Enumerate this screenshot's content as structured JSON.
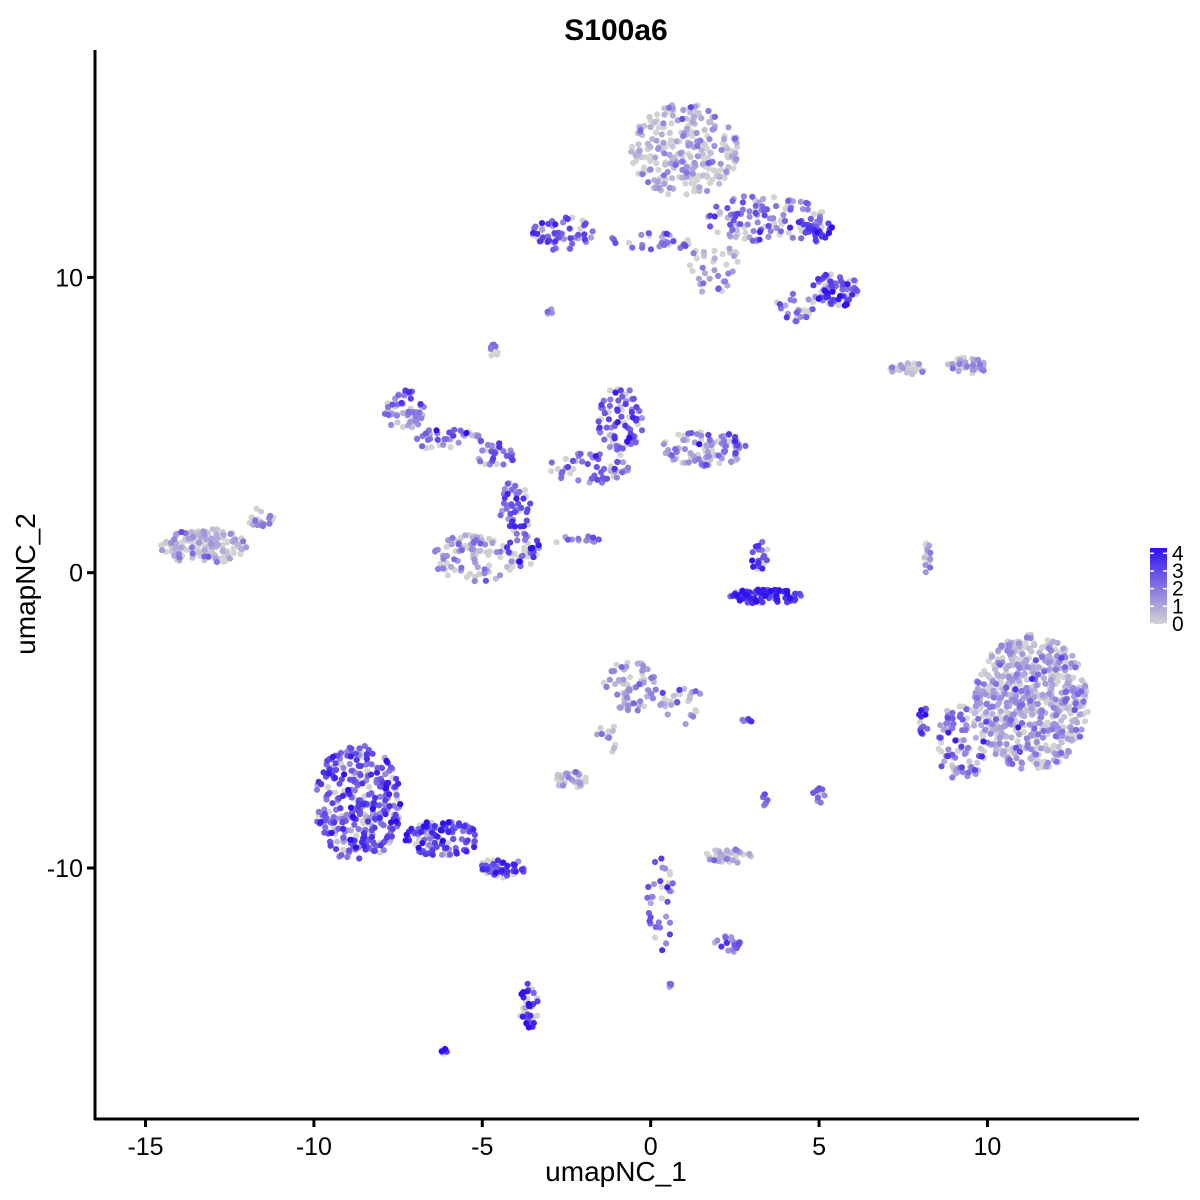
{
  "chart_data": {
    "type": "scatter",
    "title": "S100a6",
    "xlabel": "umapNC_1",
    "ylabel": "umapNC_2",
    "xlim": [
      -16.5,
      14.5
    ],
    "ylim": [
      -18.5,
      17.7
    ],
    "xticks": [
      -15,
      -10,
      -5,
      0,
      5,
      10
    ],
    "xtick_labels": [
      "-15",
      "-10",
      "-5",
      "0",
      "5",
      "10"
    ],
    "yticks": [
      -10,
      0,
      10
    ],
    "ytick_labels": [
      "-10",
      "0",
      "10"
    ],
    "grid": false,
    "legend": {
      "placement": "right",
      "type": "colorbar",
      "range": [
        0,
        4.3
      ],
      "ticks": [
        0,
        1,
        2,
        3,
        4
      ],
      "tick_labels": [
        "0",
        "1",
        "2",
        "3",
        "4"
      ],
      "low_color": "#d3d3d3",
      "high_color": "#3010f0"
    },
    "clusters": [
      {
        "cx": 1.0,
        "cy": 14.3,
        "rx": 1.6,
        "ry": 1.6,
        "n": 260,
        "mean": 0.6
      },
      {
        "cx": 3.4,
        "cy": 12.0,
        "rx": 1.8,
        "ry": 0.8,
        "n": 110,
        "mean": 1.9
      },
      {
        "cx": 5.5,
        "cy": 9.6,
        "rx": 0.7,
        "ry": 0.6,
        "n": 70,
        "mean": 3.0
      },
      {
        "cx": 4.8,
        "cy": 11.6,
        "rx": 0.6,
        "ry": 0.4,
        "n": 30,
        "mean": 3.3
      },
      {
        "cx": -2.6,
        "cy": 11.5,
        "rx": 0.9,
        "ry": 0.6,
        "n": 55,
        "mean": 2.4
      },
      {
        "cx": 0.0,
        "cy": 11.2,
        "rx": 1.3,
        "ry": 0.3,
        "n": 30,
        "mean": 1.8
      },
      {
        "cx": 1.9,
        "cy": 10.3,
        "rx": 0.8,
        "ry": 0.9,
        "n": 35,
        "mean": 1.4
      },
      {
        "cx": 4.3,
        "cy": 9.0,
        "rx": 0.6,
        "ry": 0.5,
        "n": 25,
        "mean": 1.5
      },
      {
        "cx": -3.0,
        "cy": 8.8,
        "rx": 0.15,
        "ry": 0.15,
        "n": 6,
        "mean": 1.6
      },
      {
        "cx": -4.7,
        "cy": 7.5,
        "rx": 0.25,
        "ry": 0.25,
        "n": 10,
        "mean": 1.6
      },
      {
        "cx": 7.6,
        "cy": 6.9,
        "rx": 0.7,
        "ry": 0.2,
        "n": 25,
        "mean": 0.5
      },
      {
        "cx": 9.4,
        "cy": 7.0,
        "rx": 0.6,
        "ry": 0.3,
        "n": 35,
        "mean": 0.9
      },
      {
        "cx": -7.3,
        "cy": 5.5,
        "rx": 0.6,
        "ry": 0.7,
        "n": 55,
        "mean": 1.8
      },
      {
        "cx": -6.0,
        "cy": 4.5,
        "rx": 1.0,
        "ry": 0.4,
        "n": 40,
        "mean": 2.2
      },
      {
        "cx": -4.6,
        "cy": 4.0,
        "rx": 0.6,
        "ry": 0.4,
        "n": 30,
        "mean": 2.4
      },
      {
        "cx": -4.0,
        "cy": 2.3,
        "rx": 0.5,
        "ry": 1.0,
        "n": 45,
        "mean": 2.5
      },
      {
        "cx": -0.9,
        "cy": 5.2,
        "rx": 0.7,
        "ry": 1.1,
        "n": 80,
        "mean": 2.5
      },
      {
        "cx": -1.8,
        "cy": 3.6,
        "rx": 1.2,
        "ry": 0.6,
        "n": 55,
        "mean": 2.0
      },
      {
        "cx": 1.6,
        "cy": 4.2,
        "rx": 1.3,
        "ry": 0.6,
        "n": 95,
        "mean": 1.7
      },
      {
        "cx": -5.2,
        "cy": 0.5,
        "rx": 1.3,
        "ry": 0.8,
        "n": 95,
        "mean": 0.8
      },
      {
        "cx": -3.8,
        "cy": 0.8,
        "rx": 0.5,
        "ry": 0.6,
        "n": 35,
        "mean": 2.3
      },
      {
        "cx": -2.2,
        "cy": 1.1,
        "rx": 0.7,
        "ry": 0.15,
        "n": 15,
        "mean": 1.8
      },
      {
        "cx": -13.3,
        "cy": 0.9,
        "rx": 1.3,
        "ry": 0.6,
        "n": 160,
        "mean": 0.4
      },
      {
        "cx": -11.6,
        "cy": 1.8,
        "rx": 0.4,
        "ry": 0.4,
        "n": 18,
        "mean": 0.8
      },
      {
        "cx": 3.4,
        "cy": -0.8,
        "rx": 1.1,
        "ry": 0.25,
        "n": 90,
        "mean": 3.2
      },
      {
        "cx": 3.2,
        "cy": 0.6,
        "rx": 0.3,
        "ry": 0.6,
        "n": 20,
        "mean": 2.8
      },
      {
        "cx": 8.2,
        "cy": 0.5,
        "rx": 0.15,
        "ry": 0.5,
        "n": 14,
        "mean": 0.9
      },
      {
        "cx": 11.3,
        "cy": -4.4,
        "rx": 1.7,
        "ry": 2.3,
        "n": 650,
        "mean": 0.8
      },
      {
        "cx": 9.2,
        "cy": -5.8,
        "rx": 0.8,
        "ry": 1.3,
        "n": 90,
        "mean": 1.6
      },
      {
        "cx": 8.1,
        "cy": -5.0,
        "rx": 0.15,
        "ry": 0.5,
        "n": 14,
        "mean": 3.0
      },
      {
        "cx": -0.6,
        "cy": -3.8,
        "rx": 0.8,
        "ry": 0.9,
        "n": 70,
        "mean": 0.9
      },
      {
        "cx": 0.9,
        "cy": -4.5,
        "rx": 0.7,
        "ry": 0.7,
        "n": 30,
        "mean": 1.1
      },
      {
        "cx": -2.4,
        "cy": -7.0,
        "rx": 0.5,
        "ry": 0.3,
        "n": 30,
        "mean": 1.0
      },
      {
        "cx": -1.3,
        "cy": -5.6,
        "rx": 0.3,
        "ry": 0.6,
        "n": 12,
        "mean": 1.2
      },
      {
        "cx": -8.7,
        "cy": -7.8,
        "rx": 1.3,
        "ry": 2.0,
        "n": 340,
        "mean": 2.6
      },
      {
        "cx": -6.2,
        "cy": -9.0,
        "rx": 1.1,
        "ry": 0.6,
        "n": 110,
        "mean": 2.7
      },
      {
        "cx": -4.4,
        "cy": -10.0,
        "rx": 0.7,
        "ry": 0.35,
        "n": 45,
        "mean": 3.2
      },
      {
        "cx": 2.3,
        "cy": -9.6,
        "rx": 0.7,
        "ry": 0.25,
        "n": 35,
        "mean": 0.8
      },
      {
        "cx": 0.3,
        "cy": -11.2,
        "rx": 0.4,
        "ry": 1.6,
        "n": 35,
        "mean": 2.6
      },
      {
        "cx": 2.2,
        "cy": -12.6,
        "rx": 0.5,
        "ry": 0.3,
        "n": 18,
        "mean": 1.9
      },
      {
        "cx": -3.6,
        "cy": -14.7,
        "rx": 0.3,
        "ry": 0.8,
        "n": 35,
        "mean": 3.4
      },
      {
        "cx": 5.0,
        "cy": -7.5,
        "rx": 0.2,
        "ry": 0.3,
        "n": 10,
        "mean": 2.4
      },
      {
        "cx": 3.4,
        "cy": -7.7,
        "rx": 0.1,
        "ry": 0.3,
        "n": 6,
        "mean": 2.4
      },
      {
        "cx": 2.8,
        "cy": -5.0,
        "rx": 0.25,
        "ry": 0.1,
        "n": 6,
        "mean": 2.2
      },
      {
        "cx": 0.6,
        "cy": -14.0,
        "rx": 0.1,
        "ry": 0.1,
        "n": 4,
        "mean": 2.0
      },
      {
        "cx": -6.1,
        "cy": -16.2,
        "rx": 0.15,
        "ry": 0.1,
        "n": 6,
        "mean": 4.2
      }
    ]
  }
}
